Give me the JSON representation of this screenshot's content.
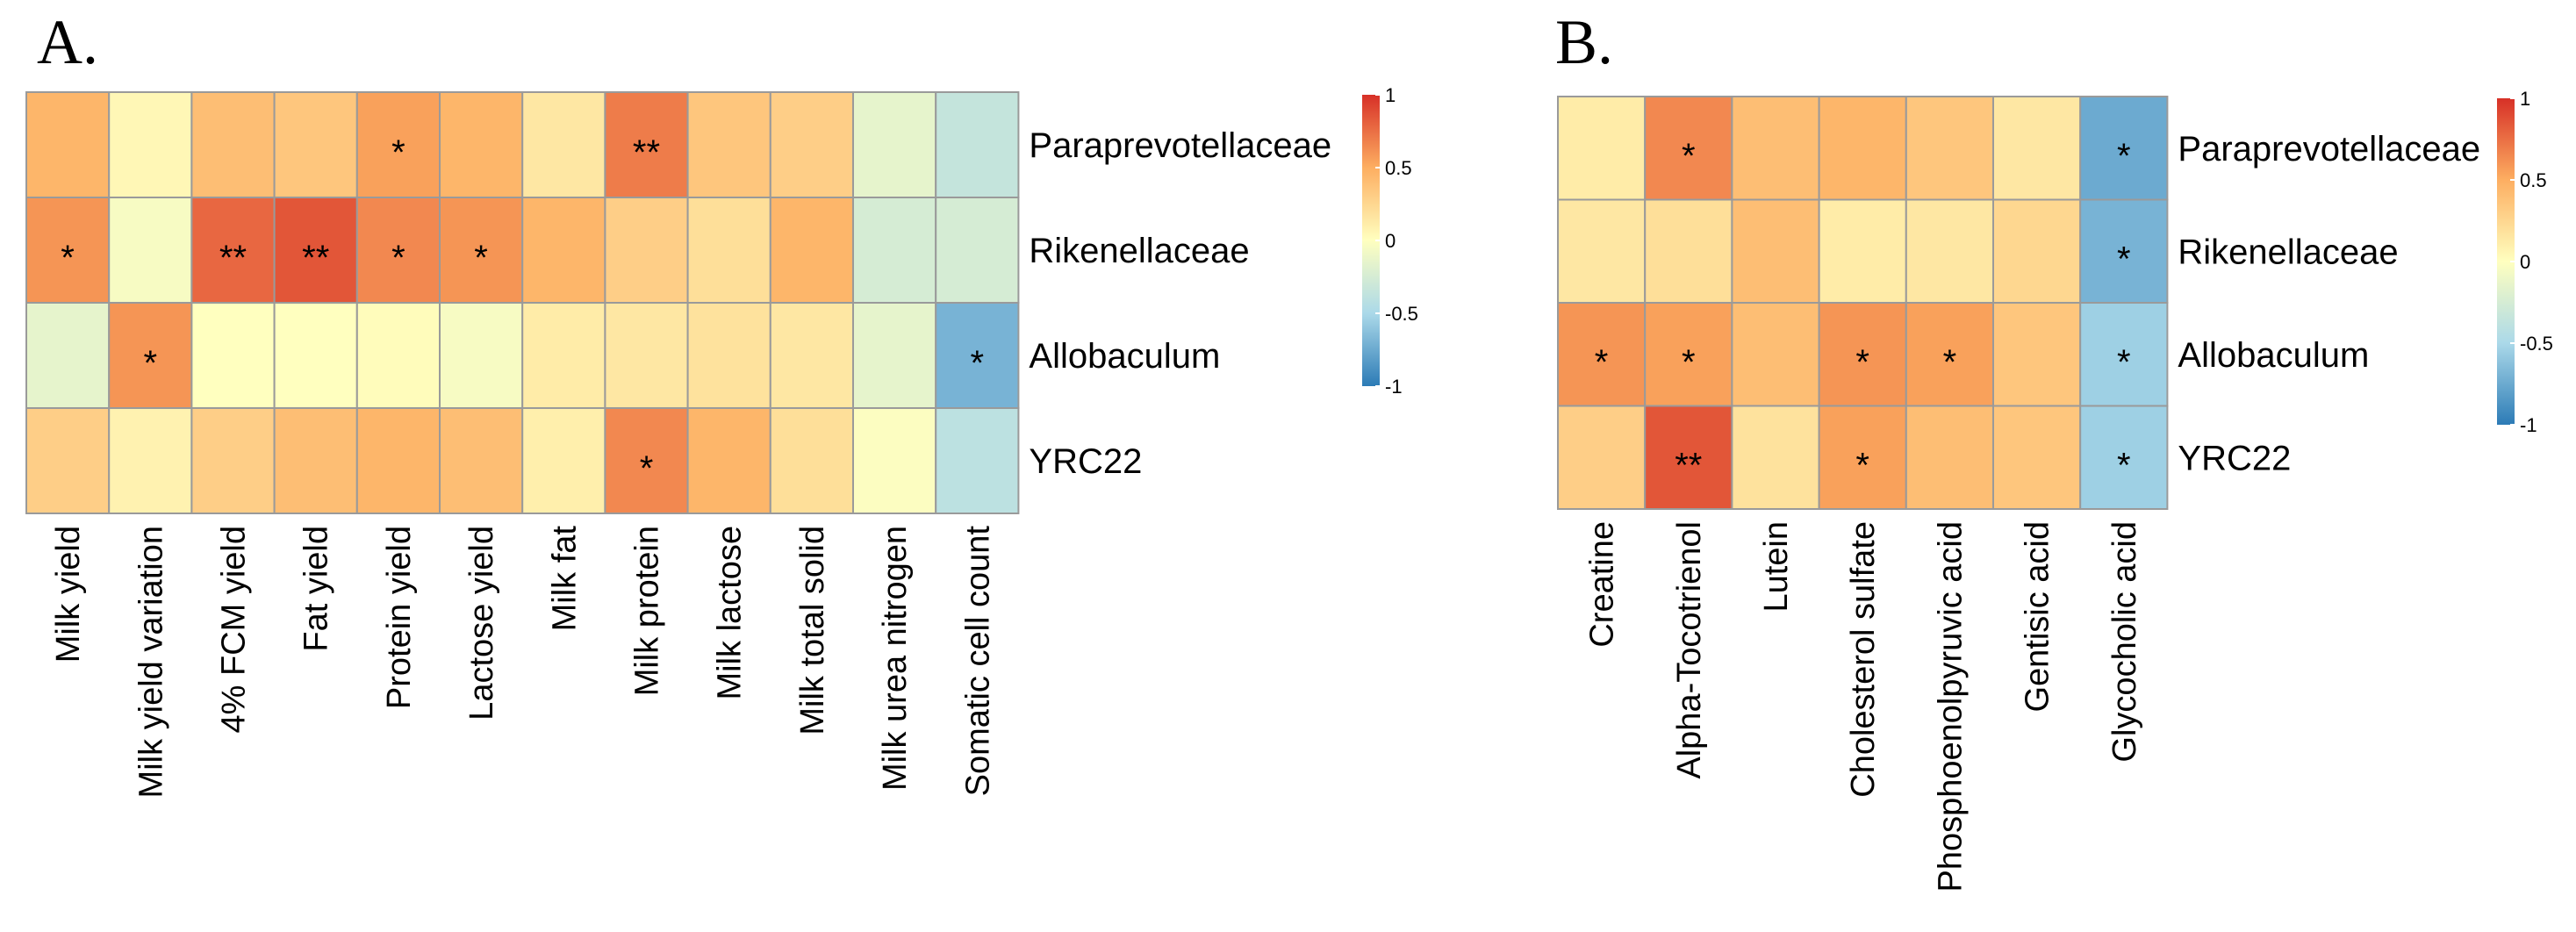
{
  "chart_data": [
    {
      "type": "heatmap",
      "panel": "A.",
      "rows": [
        "Paraprevotellaceae",
        "Rikenellaceae",
        "Allobaculum",
        "YRC22"
      ],
      "columns": [
        "Milk yield",
        "Milk yield variation",
        "4% FCM yield",
        "Fat yield",
        "Protein yield",
        "Lactose yield",
        "Milk fat",
        "Milk protein",
        "Milk lactose",
        "Milk total solid",
        "Milk urea nitrogen",
        "Somatic cell count"
      ],
      "values": [
        [
          0.45,
          0.05,
          0.4,
          0.35,
          0.55,
          0.45,
          0.15,
          0.7,
          0.35,
          0.3,
          -0.15,
          -0.35
        ],
        [
          0.6,
          -0.05,
          0.78,
          0.85,
          0.65,
          0.6,
          0.45,
          0.3,
          0.2,
          0.45,
          -0.25,
          -0.25
        ],
        [
          -0.15,
          0.6,
          0.0,
          0.0,
          0.02,
          -0.05,
          0.12,
          0.15,
          0.18,
          0.15,
          -0.15,
          -0.7
        ],
        [
          0.3,
          0.08,
          0.3,
          0.4,
          0.45,
          0.4,
          0.1,
          0.65,
          0.45,
          0.2,
          -0.02,
          -0.4
        ]
      ],
      "significance": [
        [
          "",
          "",
          "",
          "",
          "*",
          "",
          "",
          "**",
          "",
          "",
          "",
          ""
        ],
        [
          "*",
          "",
          "**",
          "**",
          "*",
          "*",
          "",
          "",
          "",
          "",
          "",
          ""
        ],
        [
          "",
          "*",
          "",
          "",
          "",
          "",
          "",
          "",
          "",
          "",
          "",
          "*"
        ],
        [
          "",
          "",
          "",
          "",
          "",
          "",
          "",
          "*",
          "",
          "",
          "",
          ""
        ]
      ],
      "legend": {
        "range": [
          -1,
          1
        ],
        "ticks": [
          "1",
          "0.5",
          "0",
          "-0.5",
          "-1"
        ]
      }
    },
    {
      "type": "heatmap",
      "panel": "B.",
      "rows": [
        "Paraprevotellaceae",
        "Rikenellaceae",
        "Allobaculum",
        "YRC22"
      ],
      "columns": [
        "Creatine",
        "Alpha-Tocotrienol",
        "Lutein",
        "Cholesterol sulfate",
        "Phosphoenolpyruvic acid",
        "Gentisic acid",
        "Glycocholic acid"
      ],
      "values": [
        [
          0.12,
          0.65,
          0.4,
          0.45,
          0.35,
          0.15,
          -0.75
        ],
        [
          0.15,
          0.2,
          0.4,
          0.12,
          0.15,
          0.25,
          -0.7
        ],
        [
          0.6,
          0.55,
          0.4,
          0.6,
          0.55,
          0.35,
          -0.55
        ],
        [
          0.3,
          0.85,
          0.18,
          0.55,
          0.4,
          0.35,
          -0.55
        ]
      ],
      "significance": [
        [
          "",
          "*",
          "",
          "",
          "",
          "",
          "*"
        ],
        [
          "",
          "",
          "",
          "",
          "",
          "",
          "*"
        ],
        [
          "*",
          "*",
          "",
          "*",
          "*",
          "",
          "*"
        ],
        [
          "",
          "**",
          "",
          "*",
          "",
          "",
          "*"
        ]
      ],
      "legend": {
        "range": [
          -1,
          1
        ],
        "ticks": [
          "1",
          "0.5",
          "0",
          "-0.5",
          "-1"
        ]
      }
    }
  ]
}
